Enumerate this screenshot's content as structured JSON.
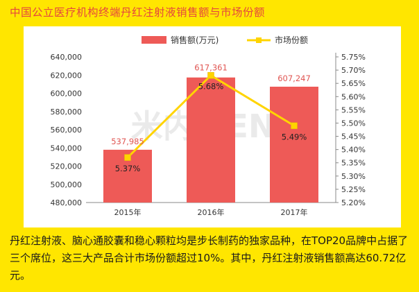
{
  "header": {
    "title": "中国公立医疗机构终端丹红注射液销售额与市场份额"
  },
  "watermark": {
    "text": "米内MENET"
  },
  "caption": {
    "text": "丹红注射液、脑心通胶囊和稳心颗粒均是步长制药的独家品种，在TOP20品牌中占据了三个席位，这三大产品合计市场份额超过10%。其中，丹红注射液销售额高达60.72亿元。"
  },
  "colors": {
    "bar": "#EE5A57",
    "line": "#FFD400",
    "accent_title": "#E5473E"
  },
  "chart_data": {
    "type": "bar+line",
    "categories": [
      "2015年",
      "2016年",
      "2017年"
    ],
    "series": [
      {
        "name": "销售额(万元)",
        "type": "bar",
        "axis": "left",
        "values": [
          537985,
          617361,
          607247
        ],
        "labels": [
          "537,985",
          "617,361",
          "607,247"
        ]
      },
      {
        "name": "市场份额",
        "type": "line",
        "axis": "right",
        "values": [
          5.37,
          5.68,
          5.49
        ],
        "labels": [
          "5.37%",
          "5.68%",
          "5.49%"
        ]
      }
    ],
    "ylim_left": [
      480000,
      640000
    ],
    "yticks_left": [
      "480,000",
      "500,000",
      "520,000",
      "540,000",
      "560,000",
      "580,000",
      "600,000",
      "620,000",
      "640,000"
    ],
    "ylim_right": [
      5.2,
      5.75
    ],
    "yticks_right": [
      "5.20%",
      "5.25%",
      "5.30%",
      "5.35%",
      "5.40%",
      "5.45%",
      "5.50%",
      "5.55%",
      "5.60%",
      "5.65%",
      "5.70%",
      "5.75%"
    ],
    "legend_position": "top-center",
    "grid": false
  }
}
